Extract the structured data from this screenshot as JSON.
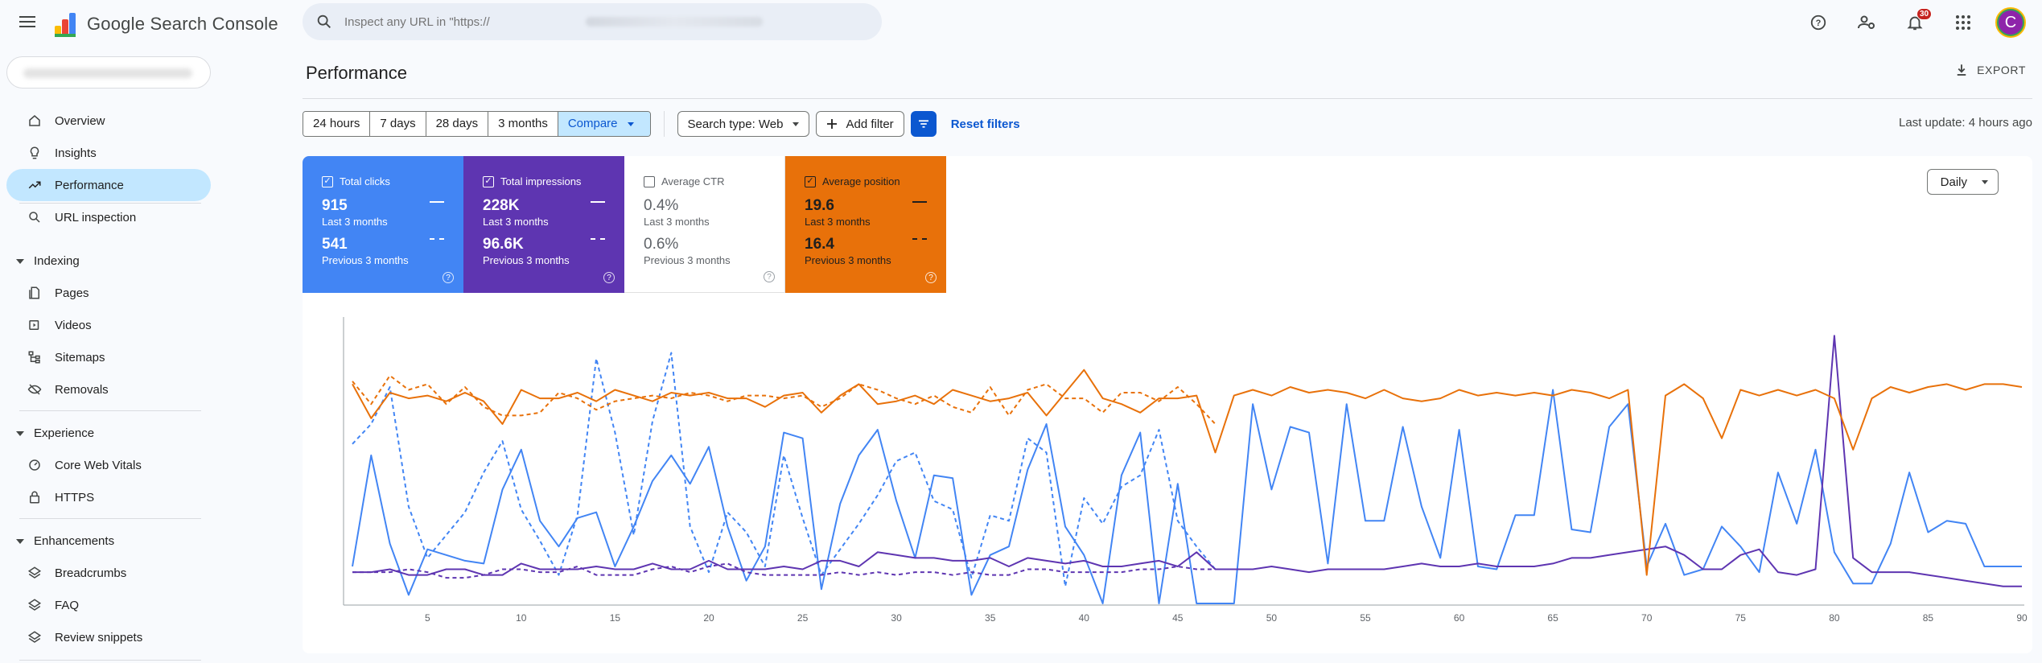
{
  "app": {
    "title": "Google Search Console"
  },
  "search": {
    "placeholder": "Inspect any URL in \"https://"
  },
  "topbar": {
    "notifications_count": "30",
    "avatar_letter": "C"
  },
  "sidebar": {
    "items": [
      {
        "label": "Overview",
        "icon": "home-icon"
      },
      {
        "label": "Insights",
        "icon": "lightbulb-icon"
      },
      {
        "label": "Performance",
        "icon": "trending-icon",
        "active": true
      },
      {
        "label": "URL inspection",
        "icon": "search-icon"
      }
    ],
    "sections": [
      {
        "title": "Indexing",
        "items": [
          {
            "label": "Pages",
            "icon": "pages-icon"
          },
          {
            "label": "Videos",
            "icon": "video-icon"
          },
          {
            "label": "Sitemaps",
            "icon": "sitemap-icon"
          },
          {
            "label": "Removals",
            "icon": "eye-off-icon"
          }
        ]
      },
      {
        "title": "Experience",
        "items": [
          {
            "label": "Core Web Vitals",
            "icon": "gauge-icon"
          },
          {
            "label": "HTTPS",
            "icon": "lock-icon"
          }
        ]
      },
      {
        "title": "Enhancements",
        "items": [
          {
            "label": "Breadcrumbs",
            "icon": "layers-icon"
          },
          {
            "label": "FAQ",
            "icon": "layers-icon"
          },
          {
            "label": "Review snippets",
            "icon": "layers-icon"
          }
        ]
      }
    ]
  },
  "main": {
    "title": "Performance",
    "export_label": "EXPORT",
    "ranges": [
      "24 hours",
      "7 days",
      "28 days",
      "3 months"
    ],
    "compare_label": "Compare",
    "search_type": "Search type: Web",
    "add_filter": "Add filter",
    "reset_filters": "Reset filters",
    "last_update": "Last update: 4 hours ago",
    "granularity": "Daily"
  },
  "metrics": [
    {
      "label": "Total clicks",
      "value": "915",
      "period": "Last 3 months",
      "prev_value": "541",
      "prev_period": "Previous 3 months",
      "checked": true,
      "color": "#4285f4"
    },
    {
      "label": "Total impressions",
      "value": "228K",
      "period": "Last 3 months",
      "prev_value": "96.6K",
      "prev_period": "Previous 3 months",
      "checked": true,
      "color": "#5e35b1"
    },
    {
      "label": "Average CTR",
      "value": "0.4%",
      "period": "Last 3 months",
      "prev_value": "0.6%",
      "prev_period": "Previous 3 months",
      "checked": false,
      "color": "#ffffff"
    },
    {
      "label": "Average position",
      "value": "19.6",
      "period": "Last 3 months",
      "prev_value": "16.4",
      "prev_period": "Previous 3 months",
      "checked": true,
      "color": "#e8710a"
    }
  ],
  "chart_data": {
    "type": "line",
    "x_ticks": [
      5,
      10,
      15,
      20,
      25,
      30,
      35,
      40,
      45,
      50,
      55,
      60,
      65,
      70,
      75,
      80,
      85,
      90
    ],
    "series": [
      {
        "name": "Total clicks",
        "period": "current",
        "style": "solid",
        "color": "#4285f4",
        "values": [
          0.13,
          0.52,
          0.21,
          0.03,
          0.19,
          0.17,
          0.15,
          0.14,
          0.4,
          0.54,
          0.29,
          0.2,
          0.3,
          0.32,
          0.13,
          0.27,
          0.43,
          0.52,
          0.42,
          0.55,
          0.27,
          0.08,
          0.2,
          0.6,
          0.58,
          0.05,
          0.35,
          0.52,
          0.61,
          0.36,
          0.16,
          0.45,
          0.44,
          0.03,
          0.17,
          0.2,
          0.47,
          0.63,
          0.27,
          0.17,
          0.0,
          0.45,
          0.6,
          0.0,
          0.42,
          0.0,
          0.0,
          0.0,
          0.7,
          0.4,
          0.62,
          0.6,
          0.14,
          0.7,
          0.29,
          0.29,
          0.62,
          0.34,
          0.16,
          0.61,
          0.13,
          0.12,
          0.31,
          0.31,
          0.75,
          0.26,
          0.25,
          0.62,
          0.7,
          0.13,
          0.28,
          0.1,
          0.12,
          0.27,
          0.2,
          0.11,
          0.46,
          0.28,
          0.54,
          0.18,
          0.07,
          0.07,
          0.21,
          0.46,
          0.25,
          0.29,
          0.28,
          0.13,
          0.13,
          0.13
        ]
      },
      {
        "name": "Total clicks",
        "period": "previous",
        "style": "dashed",
        "color": "#4285f4",
        "values": [
          0.56,
          0.63,
          0.76,
          0.34,
          0.16,
          0.24,
          0.32,
          0.46,
          0.57,
          0.33,
          0.22,
          0.1,
          0.31,
          0.86,
          0.6,
          0.24,
          0.64,
          0.88,
          0.27,
          0.11,
          0.32,
          0.25,
          0.13,
          0.52,
          0.3,
          0.1,
          0.19,
          0.28,
          0.38,
          0.5,
          0.53,
          0.36,
          0.33,
          0.09,
          0.31,
          0.29,
          0.58,
          0.53,
          0.06,
          0.37,
          0.28,
          0.41,
          0.45,
          0.61,
          0.29,
          0.2,
          0.12
        ]
      },
      {
        "name": "Total impressions",
        "period": "current",
        "style": "solid",
        "color": "#5e35b1",
        "values": [
          0.11,
          0.11,
          0.12,
          0.1,
          0.1,
          0.12,
          0.12,
          0.1,
          0.1,
          0.14,
          0.12,
          0.12,
          0.12,
          0.13,
          0.12,
          0.12,
          0.14,
          0.12,
          0.12,
          0.15,
          0.12,
          0.12,
          0.12,
          0.13,
          0.12,
          0.15,
          0.15,
          0.13,
          0.18,
          0.17,
          0.16,
          0.16,
          0.15,
          0.15,
          0.16,
          0.13,
          0.16,
          0.15,
          0.14,
          0.15,
          0.13,
          0.13,
          0.14,
          0.15,
          0.13,
          0.18,
          0.12,
          0.12,
          0.12,
          0.13,
          0.12,
          0.11,
          0.12,
          0.12,
          0.12,
          0.12,
          0.13,
          0.14,
          0.13,
          0.13,
          0.14,
          0.13,
          0.13,
          0.13,
          0.14,
          0.16,
          0.16,
          0.17,
          0.18,
          0.19,
          0.2,
          0.17,
          0.12,
          0.12,
          0.17,
          0.19,
          0.11,
          0.1,
          0.12,
          0.94,
          0.16,
          0.11,
          0.11,
          0.11,
          0.1,
          0.09,
          0.08,
          0.07,
          0.06,
          0.06
        ]
      },
      {
        "name": "Total impressions",
        "period": "previous",
        "style": "dashed",
        "color": "#5e35b1",
        "values": [
          0.11,
          0.11,
          0.11,
          0.12,
          0.11,
          0.09,
          0.09,
          0.1,
          0.12,
          0.12,
          0.11,
          0.11,
          0.13,
          0.1,
          0.1,
          0.1,
          0.12,
          0.13,
          0.11,
          0.13,
          0.14,
          0.11,
          0.1,
          0.1,
          0.1,
          0.1,
          0.11,
          0.1,
          0.11,
          0.1,
          0.11,
          0.11,
          0.1,
          0.11,
          0.1,
          0.1,
          0.12,
          0.12,
          0.11,
          0.11,
          0.11,
          0.11,
          0.12,
          0.12,
          0.13,
          0.12,
          0.12
        ]
      },
      {
        "name": "Average position",
        "period": "current",
        "style": "solid",
        "color": "#e8710a",
        "values": [
          0.77,
          0.65,
          0.74,
          0.72,
          0.73,
          0.71,
          0.74,
          0.71,
          0.63,
          0.75,
          0.72,
          0.72,
          0.74,
          0.71,
          0.75,
          0.73,
          0.71,
          0.74,
          0.73,
          0.74,
          0.72,
          0.72,
          0.69,
          0.73,
          0.74,
          0.67,
          0.73,
          0.77,
          0.7,
          0.71,
          0.73,
          0.7,
          0.75,
          0.73,
          0.71,
          0.72,
          0.74,
          0.66,
          0.74,
          0.82,
          0.72,
          0.7,
          0.67,
          0.72,
          0.72,
          0.73,
          0.53,
          0.73,
          0.75,
          0.73,
          0.76,
          0.74,
          0.75,
          0.74,
          0.72,
          0.75,
          0.72,
          0.71,
          0.72,
          0.75,
          0.73,
          0.74,
          0.73,
          0.74,
          0.73,
          0.75,
          0.74,
          0.72,
          0.75,
          0.1,
          0.73,
          0.77,
          0.72,
          0.58,
          0.75,
          0.73,
          0.75,
          0.73,
          0.75,
          0.72,
          0.54,
          0.72,
          0.76,
          0.74,
          0.76,
          0.77,
          0.75,
          0.77,
          0.77,
          0.76
        ]
      },
      {
        "name": "Average position",
        "period": "previous",
        "style": "dashed",
        "color": "#e8710a",
        "values": [
          0.78,
          0.7,
          0.8,
          0.75,
          0.77,
          0.7,
          0.76,
          0.69,
          0.66,
          0.66,
          0.67,
          0.74,
          0.72,
          0.68,
          0.71,
          0.72,
          0.73,
          0.72,
          0.74,
          0.73,
          0.71,
          0.73,
          0.73,
          0.72,
          0.73,
          0.69,
          0.72,
          0.77,
          0.75,
          0.72,
          0.7,
          0.73,
          0.69,
          0.67,
          0.76,
          0.66,
          0.75,
          0.77,
          0.72,
          0.72,
          0.67,
          0.74,
          0.74,
          0.71,
          0.76,
          0.7,
          0.63
        ]
      }
    ]
  }
}
